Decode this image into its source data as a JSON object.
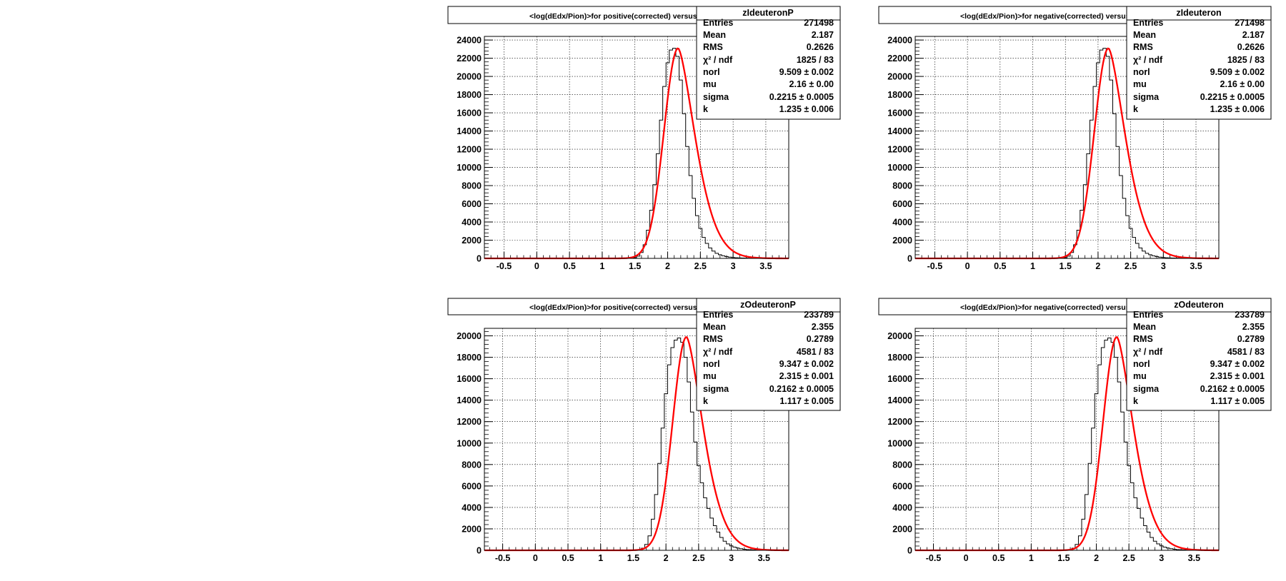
{
  "chart_data": [
    {
      "type": "bar",
      "title": "<log(dEdx/Pion)>for positive(corrected) versus sector and row",
      "stats_name": "zIdeuteronP",
      "x_ticks": [
        "-0.5",
        "0",
        "0.5",
        "1",
        "1.5",
        "2",
        "2.5",
        "3",
        "3.5"
      ],
      "y_ticks": [
        "0",
        "2000",
        "4000",
        "6000",
        "8000",
        "10000",
        "12000",
        "14000",
        "16000",
        "18000",
        "20000",
        "22000",
        "24000"
      ],
      "xlim": [
        -0.8,
        3.85
      ],
      "ylim": [
        0,
        24400
      ],
      "grid": true,
      "stats": [
        {
          "label": "Entries",
          "value": "271498"
        },
        {
          "label": "Mean",
          "value": "2.187"
        },
        {
          "label": "RMS",
          "value": "0.2626"
        },
        {
          "label": "χ² / ndf",
          "value": "1825 / 83"
        },
        {
          "label": "norl",
          "value": "9.509 ± 0.002"
        },
        {
          "label": "mu",
          "value": "2.16 ± 0.00"
        },
        {
          "label": "sigma",
          "value": "0.2215 ± 0.0005"
        },
        {
          "label": "k",
          "value": "1.235 ± 0.006"
        }
      ],
      "histogram": {
        "bin_centers": [
          1.5,
          1.55,
          1.6,
          1.65,
          1.7,
          1.75,
          1.8,
          1.85,
          1.9,
          1.95,
          2.0,
          2.05,
          2.1,
          2.15,
          2.2,
          2.25,
          2.3,
          2.35,
          2.4,
          2.45,
          2.5,
          2.55,
          2.6,
          2.65,
          2.7,
          2.75,
          2.8,
          2.85,
          2.9,
          2.95,
          3.0,
          3.05,
          3.1,
          3.15,
          3.2,
          3.25,
          3.3,
          3.35,
          3.4,
          3.45,
          3.5
        ],
        "values": [
          80,
          250,
          650,
          1500,
          3100,
          5300,
          8100,
          11500,
          15200,
          18900,
          21500,
          22900,
          23100,
          22200,
          19600,
          15900,
          12300,
          9100,
          6600,
          4700,
          3300,
          2300,
          1650,
          1150,
          800,
          560,
          400,
          280,
          200,
          140,
          100,
          70,
          50,
          40,
          30,
          20,
          15,
          10,
          8,
          5,
          3
        ]
      },
      "fit": {
        "peak_x": 2.16,
        "peak_y": 23100,
        "sigma": 0.2215,
        "tail": 1.235
      }
    },
    {
      "type": "bar",
      "title": "<log(dEdx/Pion)>for negative(corrected) versus sector and row",
      "stats_name": "zIdeuteron",
      "x_ticks": [
        "-0.5",
        "0",
        "0.5",
        "1",
        "1.5",
        "2",
        "2.5",
        "3",
        "3.5"
      ],
      "y_ticks": [
        "0",
        "2000",
        "4000",
        "6000",
        "8000",
        "10000",
        "12000",
        "14000",
        "16000",
        "18000",
        "20000",
        "22000",
        "24000"
      ],
      "xlim": [
        -0.8,
        3.85
      ],
      "ylim": [
        0,
        24400
      ],
      "grid": true,
      "stats": [
        {
          "label": "Entries",
          "value": "271498"
        },
        {
          "label": "Mean",
          "value": "2.187"
        },
        {
          "label": "RMS",
          "value": "0.2626"
        },
        {
          "label": "χ² / ndf",
          "value": "1825 / 83"
        },
        {
          "label": "norl",
          "value": "9.509 ± 0.002"
        },
        {
          "label": "mu",
          "value": "2.16 ± 0.00"
        },
        {
          "label": "sigma",
          "value": "0.2215 ± 0.0005"
        },
        {
          "label": "k",
          "value": "1.235 ± 0.006"
        }
      ],
      "histogram": {
        "bin_centers": [
          1.5,
          1.55,
          1.6,
          1.65,
          1.7,
          1.75,
          1.8,
          1.85,
          1.9,
          1.95,
          2.0,
          2.05,
          2.1,
          2.15,
          2.2,
          2.25,
          2.3,
          2.35,
          2.4,
          2.45,
          2.5,
          2.55,
          2.6,
          2.65,
          2.7,
          2.75,
          2.8,
          2.85,
          2.9,
          2.95,
          3.0,
          3.05,
          3.1,
          3.15,
          3.2,
          3.25,
          3.3,
          3.35,
          3.4,
          3.45,
          3.5
        ],
        "values": [
          80,
          250,
          650,
          1500,
          3100,
          5300,
          8100,
          11500,
          15200,
          18900,
          21500,
          22900,
          23100,
          22200,
          19600,
          15900,
          12300,
          9100,
          6600,
          4700,
          3300,
          2300,
          1650,
          1150,
          800,
          560,
          400,
          280,
          200,
          140,
          100,
          70,
          50,
          40,
          30,
          20,
          15,
          10,
          8,
          5,
          3
        ]
      },
      "fit": {
        "peak_x": 2.16,
        "peak_y": 23100,
        "sigma": 0.2215,
        "tail": 1.235
      }
    },
    {
      "type": "bar",
      "title": "<log(dEdx/Pion)>for positive(corrected) versus sector and row",
      "stats_name": "zOdeuteronP",
      "x_ticks": [
        "-0.5",
        "0",
        "0.5",
        "1",
        "1.5",
        "2",
        "2.5",
        "3",
        "3.5"
      ],
      "y_ticks": [
        "0",
        "2000",
        "4000",
        "6000",
        "8000",
        "10000",
        "12000",
        "14000",
        "16000",
        "18000",
        "20000"
      ],
      "xlim": [
        -0.78,
        3.88
      ],
      "ylim": [
        0,
        20700
      ],
      "grid": true,
      "stats": [
        {
          "label": "Entries",
          "value": "233789"
        },
        {
          "label": "Mean",
          "value": "2.355"
        },
        {
          "label": "RMS",
          "value": "0.2789"
        },
        {
          "label": "χ² / ndf",
          "value": "4581 / 83"
        },
        {
          "label": "norl",
          "value": "9.347 ± 0.002"
        },
        {
          "label": "mu",
          "value": "2.315 ± 0.001"
        },
        {
          "label": "sigma",
          "value": "0.2162 ± 0.0005"
        },
        {
          "label": "k",
          "value": "1.117 ± 0.005"
        }
      ],
      "histogram": {
        "bin_centers": [
          1.6,
          1.65,
          1.7,
          1.75,
          1.8,
          1.85,
          1.9,
          1.95,
          2.0,
          2.05,
          2.1,
          2.15,
          2.2,
          2.25,
          2.3,
          2.35,
          2.4,
          2.45,
          2.5,
          2.55,
          2.6,
          2.65,
          2.7,
          2.75,
          2.8,
          2.85,
          2.9,
          2.95,
          3.0,
          3.05,
          3.1,
          3.15,
          3.2,
          3.25,
          3.3,
          3.35,
          3.4,
          3.45,
          3.5,
          3.55,
          3.6
        ],
        "values": [
          60,
          200,
          550,
          1350,
          2900,
          5200,
          8100,
          11400,
          14600,
          17300,
          18900,
          19600,
          19800,
          19400,
          18000,
          15700,
          12900,
          10100,
          7900,
          6300,
          4900,
          3900,
          3000,
          2300,
          1700,
          1200,
          850,
          600,
          420,
          300,
          210,
          150,
          100,
          70,
          50,
          35,
          25,
          15,
          10,
          6,
          3
        ]
      },
      "fit": {
        "peak_x": 2.315,
        "peak_y": 19900,
        "sigma": 0.2162,
        "tail": 1.117
      }
    },
    {
      "type": "bar",
      "title": "<log(dEdx/Pion)>for negative(corrected) versus sector and row",
      "stats_name": "zOdeuteron",
      "x_ticks": [
        "-0.5",
        "0",
        "0.5",
        "1",
        "1.5",
        "2",
        "2.5",
        "3",
        "3.5"
      ],
      "y_ticks": [
        "0",
        "2000",
        "4000",
        "6000",
        "8000",
        "10000",
        "12000",
        "14000",
        "16000",
        "18000",
        "20000"
      ],
      "xlim": [
        -0.78,
        3.88
      ],
      "ylim": [
        0,
        20700
      ],
      "grid": true,
      "stats": [
        {
          "label": "Entries",
          "value": "233789"
        },
        {
          "label": "Mean",
          "value": "2.355"
        },
        {
          "label": "RMS",
          "value": "0.2789"
        },
        {
          "label": "χ² / ndf",
          "value": "4581 / 83"
        },
        {
          "label": "norl",
          "value": "9.347 ± 0.002"
        },
        {
          "label": "mu",
          "value": "2.315 ± 0.001"
        },
        {
          "label": "sigma",
          "value": "0.2162 ± 0.0005"
        },
        {
          "label": "k",
          "value": "1.117 ± 0.005"
        }
      ],
      "histogram": {
        "bin_centers": [
          1.6,
          1.65,
          1.7,
          1.75,
          1.8,
          1.85,
          1.9,
          1.95,
          2.0,
          2.05,
          2.1,
          2.15,
          2.2,
          2.25,
          2.3,
          2.35,
          2.4,
          2.45,
          2.5,
          2.55,
          2.6,
          2.65,
          2.7,
          2.75,
          2.8,
          2.85,
          2.9,
          2.95,
          3.0,
          3.05,
          3.1,
          3.15,
          3.2,
          3.25,
          3.3,
          3.35,
          3.4,
          3.45,
          3.5,
          3.55,
          3.6
        ],
        "values": [
          60,
          200,
          550,
          1350,
          2900,
          5200,
          8100,
          11400,
          14600,
          17300,
          18900,
          19600,
          19800,
          19400,
          18000,
          15700,
          12900,
          10100,
          7900,
          6300,
          4900,
          3900,
          3000,
          2300,
          1700,
          1200,
          850,
          600,
          420,
          300,
          210,
          150,
          100,
          70,
          50,
          35,
          25,
          15,
          10,
          6,
          3
        ]
      },
      "fit": {
        "peak_x": 2.315,
        "peak_y": 19900,
        "sigma": 0.2162,
        "tail": 1.117
      }
    }
  ],
  "colors": {
    "fit_line": "#ff0000",
    "histogram": "#000000",
    "grid": "#000000",
    "background": "#ffffff"
  }
}
